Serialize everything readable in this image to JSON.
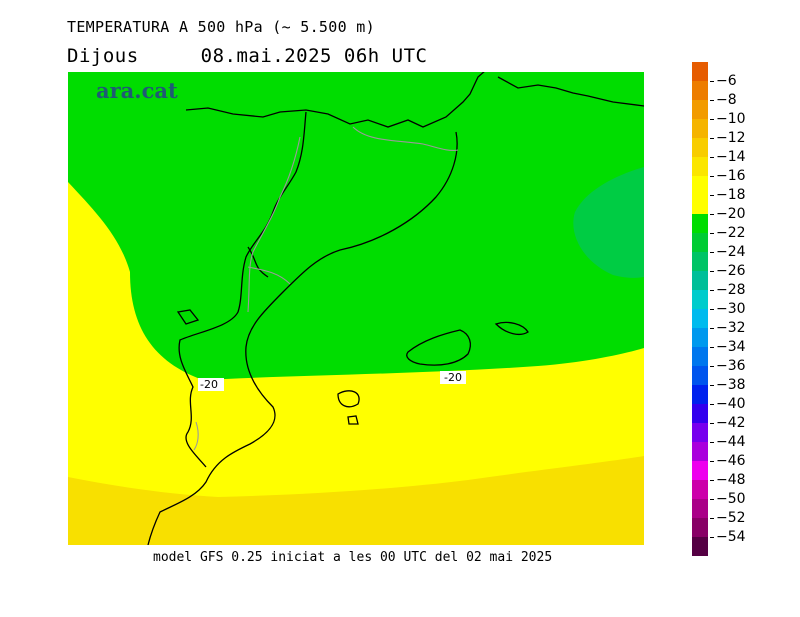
{
  "header": {
    "title": "TEMPERATURA A 500 hPa (~ 5.500 m)",
    "day": "Dijous",
    "datetime": "08.mai.2025 06h UTC"
  },
  "logo": {
    "text": "ara.cat"
  },
  "map": {
    "contour_labels": [
      {
        "text": "-20"
      },
      {
        "text": "-20"
      }
    ],
    "colors": {
      "band_minus_20_to_minus_24": "#00dd00",
      "band_minus_18_to_minus_20": "#ffff00",
      "band_minus_16_to_minus_18": "#f8e000",
      "band_minus_24_to_minus_26": "#00cc44",
      "coastline": "#000000",
      "borders": "#9a9a9a"
    }
  },
  "footer": {
    "text": "model GFS 0.25 iniciat a les 00 UTC del 02 mai 2025"
  },
  "legend": {
    "labels": [
      "-6",
      "-8",
      "-10",
      "-12",
      "-14",
      "-16",
      "-18",
      "-20",
      "-22",
      "-24",
      "-26",
      "-28",
      "-30",
      "-32",
      "-34",
      "-36",
      "-38",
      "-40",
      "-42",
      "-44",
      "-46",
      "-48",
      "-50",
      "-52",
      "-54"
    ],
    "colors": [
      "#e65c00",
      "#ed7d00",
      "#f29b00",
      "#f5b400",
      "#f8cd00",
      "#fbe600",
      "#ffff00",
      "#ffff00",
      "#00dd00",
      "#00cc33",
      "#00c466",
      "#00bf99",
      "#00cccc",
      "#00bbee",
      "#0099ee",
      "#0077ee",
      "#0055ee",
      "#0022ee",
      "#3300ee",
      "#7700ee",
      "#aa00dd",
      "#ee00ee",
      "#cc00aa",
      "#aa0088",
      "#880066",
      "#550044"
    ]
  }
}
